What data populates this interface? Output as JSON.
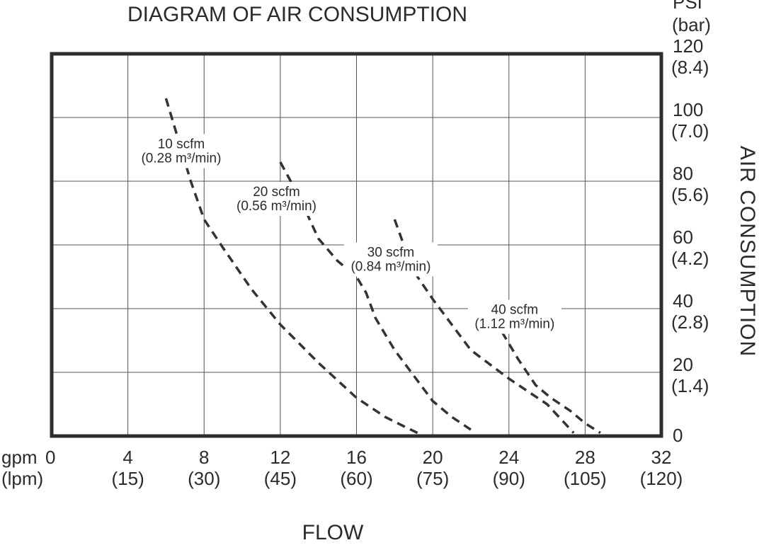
{
  "chart_data": {
    "type": "line",
    "title": "DIAGRAM OF AIR CONSUMPTION",
    "xlabel": "FLOW",
    "ylabel": "AIR CONSUMPTION",
    "x_unit_primary": "gpm",
    "x_unit_secondary": "(lpm)",
    "y_unit_primary": "PSI",
    "y_unit_secondary": "(bar)",
    "xlim": [
      0,
      32
    ],
    "ylim": [
      0,
      120
    ],
    "grid": true,
    "x_ticks": [
      {
        "value": 0,
        "primary": "0",
        "secondary": ""
      },
      {
        "value": 4,
        "primary": "4",
        "secondary": "(15)"
      },
      {
        "value": 8,
        "primary": "8",
        "secondary": "(30)"
      },
      {
        "value": 12,
        "primary": "12",
        "secondary": "(45)"
      },
      {
        "value": 16,
        "primary": "16",
        "secondary": "(60)"
      },
      {
        "value": 20,
        "primary": "20",
        "secondary": "(75)"
      },
      {
        "value": 24,
        "primary": "24",
        "secondary": "(90)"
      },
      {
        "value": 28,
        "primary": "28",
        "secondary": "(105)"
      },
      {
        "value": 32,
        "primary": "32",
        "secondary": "(120)"
      }
    ],
    "y_ticks": [
      {
        "value": 0,
        "primary": "0",
        "secondary": ""
      },
      {
        "value": 20,
        "primary": "20",
        "secondary": "(1.4)"
      },
      {
        "value": 40,
        "primary": "40",
        "secondary": "(2.8)"
      },
      {
        "value": 60,
        "primary": "60",
        "secondary": "(4.2)"
      },
      {
        "value": 80,
        "primary": "80",
        "secondary": "(5.6)"
      },
      {
        "value": 100,
        "primary": "100",
        "secondary": "(7.0)"
      },
      {
        "value": 120,
        "primary": "120",
        "secondary": "(8.4)"
      }
    ],
    "series": [
      {
        "name": "10 scfm",
        "sub": "(0.28 m³/min)",
        "x": [
          6.0,
          6.5,
          7.3,
          8.0,
          9.0,
          10.5,
          12.0,
          14.0,
          16.0,
          17.5,
          18.5,
          19.2
        ],
        "y": [
          106,
          96,
          80,
          68,
          59,
          46,
          35,
          23,
          12,
          6,
          3,
          1
        ]
      },
      {
        "name": "20 scfm",
        "sub": "(0.56 m³/min)",
        "x": [
          12.0,
          13.0,
          14.0,
          15.0,
          16.0,
          16.5,
          17.0,
          18.0,
          19.0,
          20.0,
          21.0,
          22.0
        ],
        "y": [
          86,
          75,
          62,
          55,
          50,
          45,
          37,
          27,
          19,
          11,
          6,
          2
        ]
      },
      {
        "name": "30 scfm",
        "sub": "(0.84 m³/min)",
        "x": [
          18.0,
          18.6,
          19.2,
          20.0,
          21.0,
          22.0,
          24.0,
          26.0,
          27.4
        ],
        "y": [
          68,
          58,
          50,
          43,
          35,
          27,
          18,
          10,
          1
        ]
      },
      {
        "name": "40 scfm",
        "sub": "(1.12 m³/min)",
        "x": [
          22.8,
          23.6,
          24.5,
          25.4,
          26.2,
          27.2,
          28.0,
          28.8
        ],
        "y": [
          40,
          33,
          24,
          16,
          12,
          8,
          4,
          1
        ]
      }
    ],
    "legend": "inline labels on curves"
  }
}
